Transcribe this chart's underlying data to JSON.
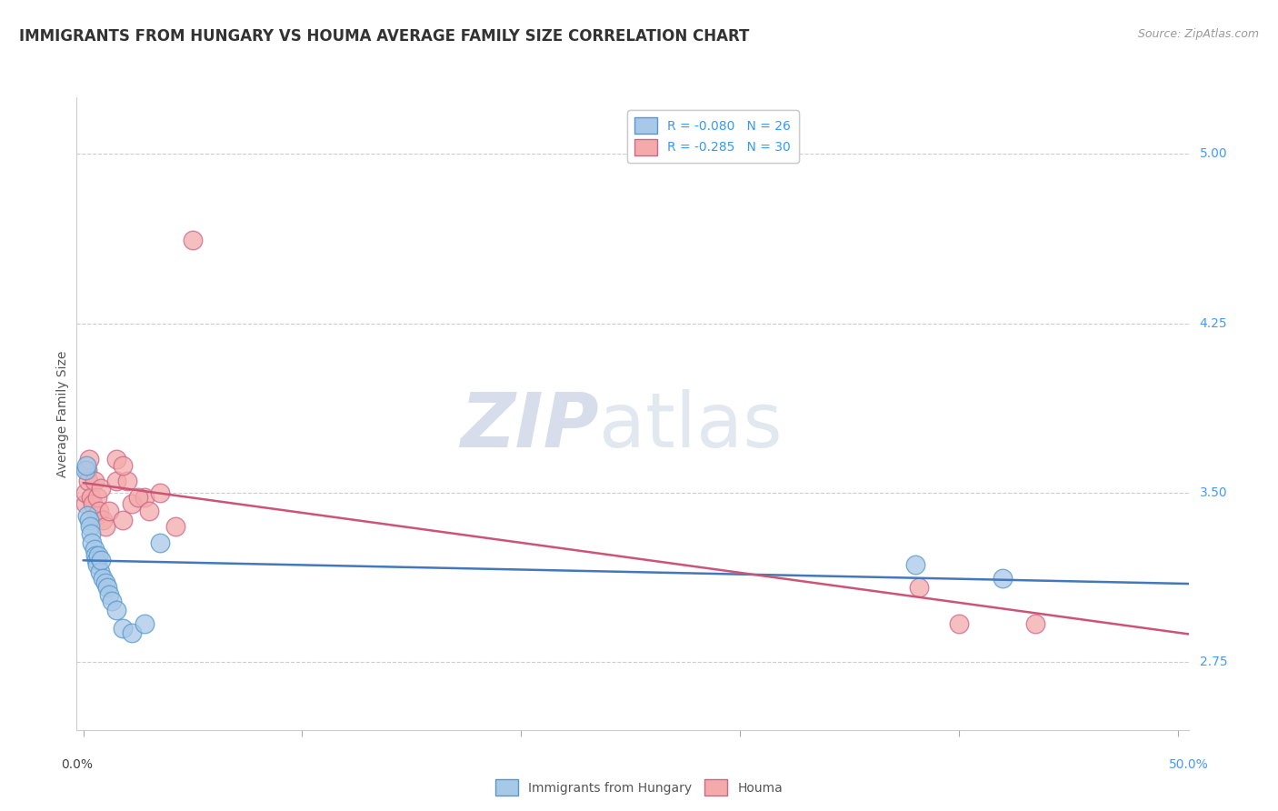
{
  "title": "IMMIGRANTS FROM HUNGARY VS HOUMA AVERAGE FAMILY SIZE CORRELATION CHART",
  "source_text": "Source: ZipAtlas.com",
  "ylabel": "Average Family Size",
  "yticks": [
    2.75,
    3.5,
    4.25,
    5.0
  ],
  "ymin": 2.45,
  "ymax": 5.25,
  "xmin": -0.003,
  "xmax": 0.505,
  "legend_blue_label": "Immigrants from Hungary",
  "legend_pink_label": "Houma",
  "blue_R": -0.08,
  "blue_N": 26,
  "pink_R": -0.285,
  "pink_N": 30,
  "blue_dot_color": "#a8c8e8",
  "pink_dot_color": "#f4aaaa",
  "blue_edge_color": "#5599cc",
  "pink_edge_color": "#cc6688",
  "blue_line_color": "#4477bb",
  "pink_line_color": "#cc5577",
  "background_color": "#ffffff",
  "grid_color": "#cccccc",
  "blue_points_x": [
    0.001,
    0.0015,
    0.002,
    0.0025,
    0.003,
    0.0035,
    0.004,
    0.005,
    0.0055,
    0.006,
    0.0065,
    0.007,
    0.0075,
    0.008,
    0.009,
    0.01,
    0.011,
    0.012,
    0.013,
    0.015,
    0.018,
    0.022,
    0.028,
    0.035,
    0.38,
    0.42
  ],
  "blue_points_y": [
    3.6,
    3.62,
    3.4,
    3.38,
    3.35,
    3.32,
    3.28,
    3.25,
    3.22,
    3.2,
    3.18,
    3.22,
    3.15,
    3.2,
    3.12,
    3.1,
    3.08,
    3.05,
    3.02,
    2.98,
    2.9,
    2.88,
    2.92,
    3.28,
    3.18,
    3.12
  ],
  "pink_points_x": [
    0.0008,
    0.0012,
    0.0018,
    0.0022,
    0.0028,
    0.0035,
    0.0042,
    0.005,
    0.0058,
    0.0065,
    0.0072,
    0.008,
    0.009,
    0.01,
    0.012,
    0.015,
    0.018,
    0.022,
    0.028,
    0.035,
    0.042,
    0.05,
    0.02,
    0.025,
    0.03,
    0.015,
    0.018,
    0.382,
    0.4,
    0.435
  ],
  "pink_points_y": [
    3.45,
    3.5,
    3.6,
    3.55,
    3.65,
    3.48,
    3.45,
    3.55,
    3.4,
    3.48,
    3.42,
    3.52,
    3.38,
    3.35,
    3.42,
    3.55,
    3.38,
    3.45,
    3.48,
    3.5,
    3.35,
    4.62,
    3.55,
    3.48,
    3.42,
    3.65,
    3.62,
    3.08,
    2.92,
    2.92
  ],
  "title_fontsize": 12,
  "ylabel_fontsize": 10,
  "tick_fontsize": 10,
  "legend_fontsize": 10,
  "source_fontsize": 9,
  "right_tick_color": "#4499ff",
  "left_pct_color": "#444444",
  "right_pct_color": "#4499ff"
}
